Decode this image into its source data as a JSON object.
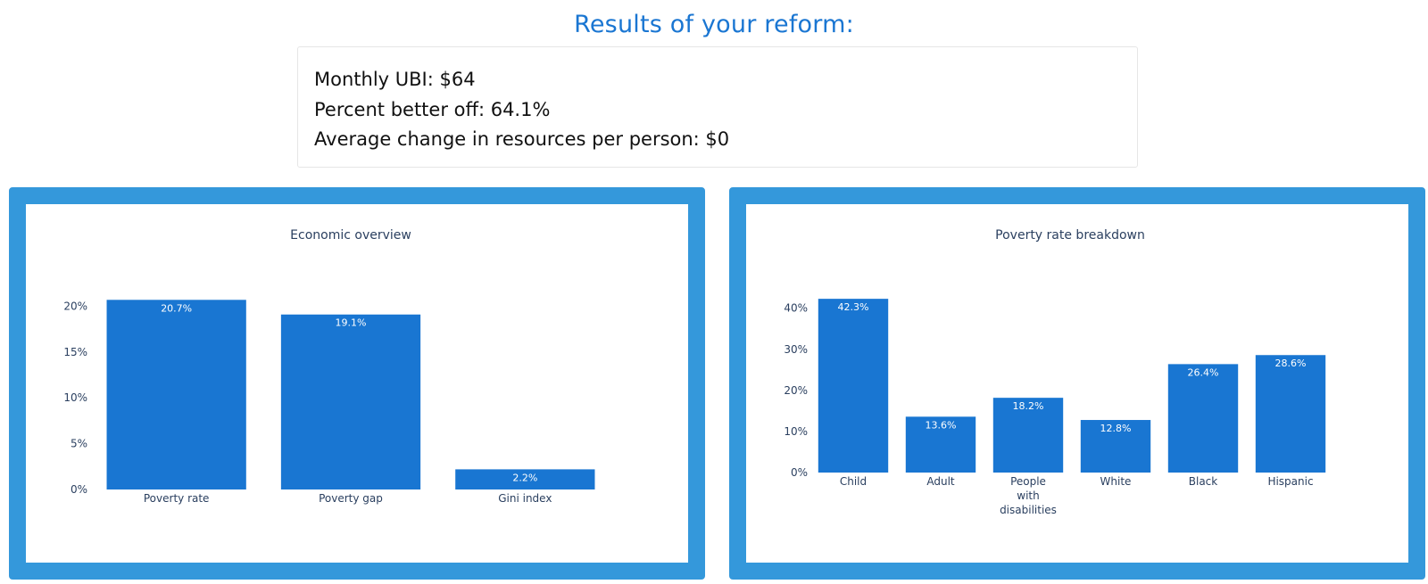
{
  "header": {
    "title": "Results of your reform:"
  },
  "summary": {
    "lines": [
      "Monthly UBI: $64",
      "Percent better off: 64.1%",
      "Average change in resources per person: $0"
    ]
  },
  "colors": {
    "accent": "#1a76d2",
    "panel_border": "#3498db",
    "bar": "#1976d2",
    "axis_text": "#2a3f5f"
  },
  "chart_data": [
    {
      "type": "bar",
      "title": "Economic overview",
      "categories": [
        "Poverty rate",
        "Poverty gap",
        "Gini index"
      ],
      "values": [
        20.7,
        19.1,
        2.2
      ],
      "data_labels": [
        "20.7%",
        "19.1%",
        "2.2%"
      ],
      "yticks": [
        0,
        5,
        10,
        15,
        20
      ],
      "ytick_labels": [
        "0%",
        "5%",
        "10%",
        "15%",
        "20%"
      ],
      "ylim": [
        0,
        21.8
      ],
      "xlabel": "",
      "ylabel": "",
      "grid": false,
      "legend": "none"
    },
    {
      "type": "bar",
      "title": "Poverty rate breakdown",
      "categories": [
        "Child",
        "Adult",
        "People with disabilities",
        "White",
        "Black",
        "Hispanic"
      ],
      "category_lines": [
        [
          "Child"
        ],
        [
          "Adult"
        ],
        [
          "People",
          "with",
          "disabilities"
        ],
        [
          "White"
        ],
        [
          "Black"
        ],
        [
          "Hispanic"
        ]
      ],
      "values": [
        42.3,
        13.6,
        18.2,
        12.8,
        26.4,
        28.6
      ],
      "data_labels": [
        "42.3%",
        "13.6%",
        "18.2%",
        "12.8%",
        "26.4%",
        "28.6%"
      ],
      "yticks": [
        0,
        10,
        20,
        30,
        40
      ],
      "ytick_labels": [
        "0%",
        "10%",
        "20%",
        "30%",
        "40%"
      ],
      "ylim": [
        0,
        44.5
      ],
      "xlabel": "",
      "ylabel": "",
      "grid": false,
      "legend": "none"
    }
  ]
}
